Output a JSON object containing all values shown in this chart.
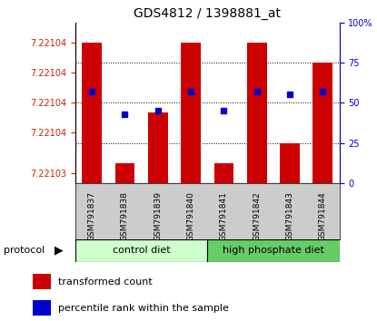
{
  "title": "GDS4812 / 1398881_at",
  "samples": [
    "GSM791837",
    "GSM791838",
    "GSM791839",
    "GSM791840",
    "GSM791841",
    "GSM791842",
    "GSM791843",
    "GSM791844"
  ],
  "red_values": [
    7.221043,
    7.221031,
    7.221036,
    7.221043,
    7.221031,
    7.221043,
    7.221033,
    7.221041
  ],
  "blue_values": [
    57,
    43,
    45,
    57,
    45,
    57,
    55,
    57
  ],
  "ylim_left": [
    7.221029,
    7.221045
  ],
  "ylim_right": [
    0,
    100
  ],
  "yticks_right": [
    0,
    25,
    50,
    75,
    100
  ],
  "control_diet_label": "control diet",
  "high_phosphate_label": "high phosphate diet",
  "protocol_label": "protocol",
  "legend_red": "transformed count",
  "legend_blue": "percentile rank within the sample",
  "bar_color": "#cc0000",
  "dot_color": "#0000cc",
  "control_bg": "#ccffcc",
  "high_phosphate_bg": "#66cc66",
  "tick_label_bg": "#cccccc",
  "y_left_color": "#cc2200",
  "y_right_color": "#0000cc",
  "n_control": 4,
  "n_total": 8,
  "bar_bottom": 7.221029,
  "bar_width": 0.6
}
